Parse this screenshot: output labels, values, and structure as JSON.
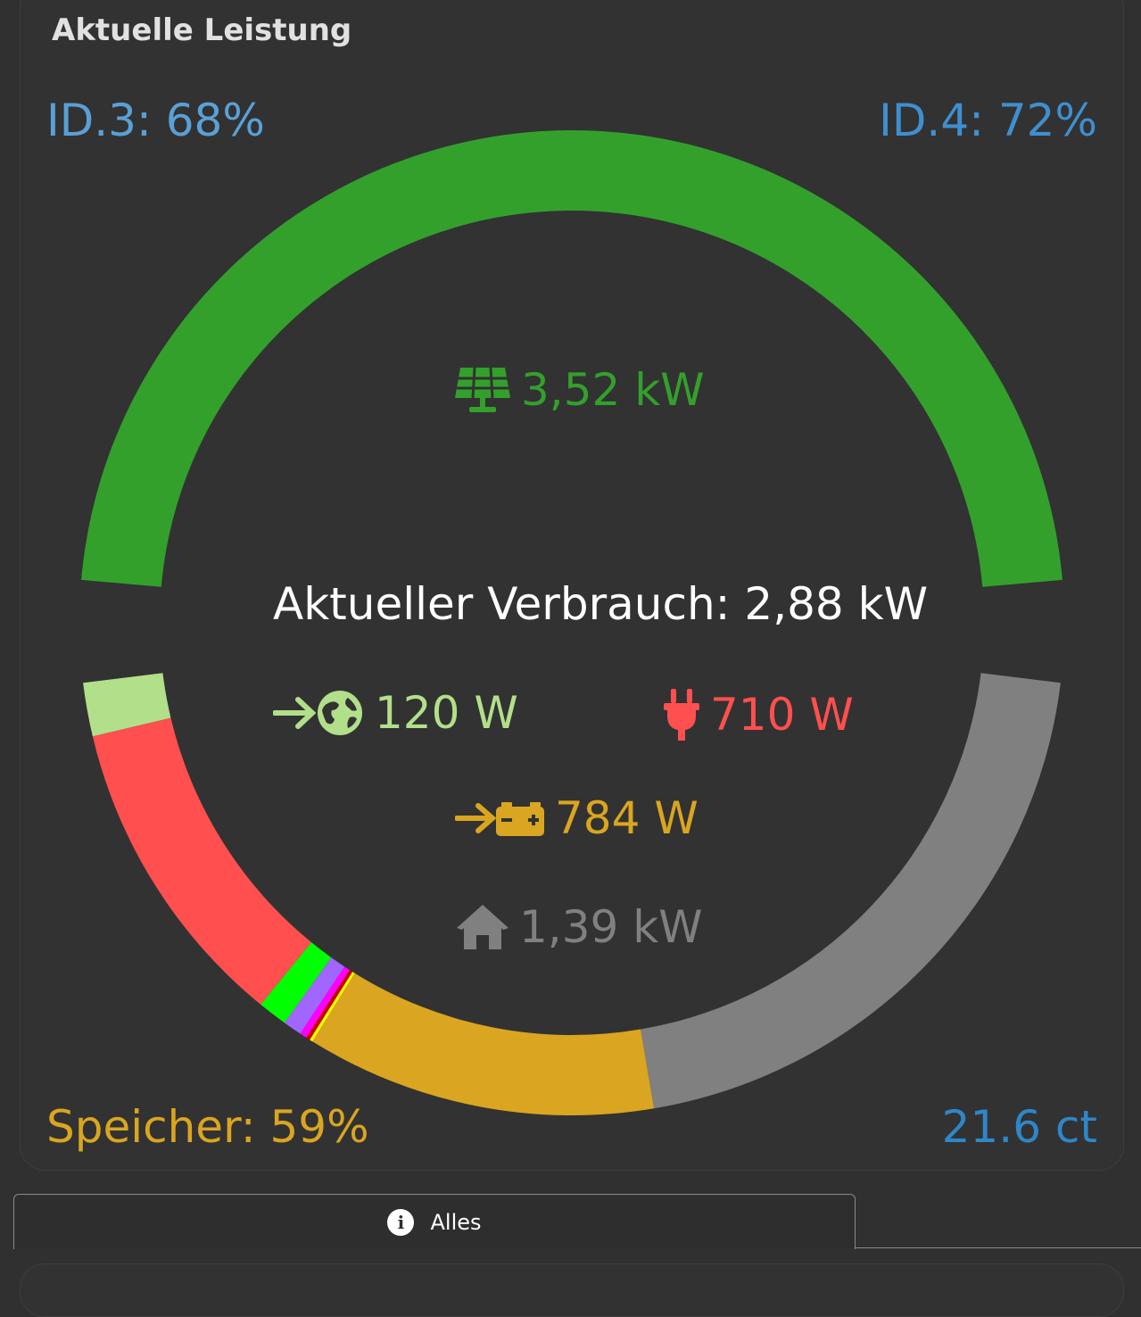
{
  "card": {
    "title": "Aktuelle Leistung",
    "top_left": {
      "text": "ID.3: 68%",
      "color": "#5aa0d6"
    },
    "top_right": {
      "text": "ID.4: 72%",
      "color": "#3f8fd0"
    },
    "bottom_left": {
      "text": "Speicher: 59%",
      "color": "#daa520"
    },
    "bottom_right": {
      "text": "21.6 ct",
      "color": "#2f86c8"
    }
  },
  "center": {
    "solar": {
      "icon": "solar-panel-icon",
      "value": "3,52 kW",
      "color": "#33a02c"
    },
    "consumption": {
      "label": "Aktueller Verbrauch: 2,88 kW",
      "color": "#ffffff"
    },
    "grid_import": {
      "icon": "grid-import-icon",
      "value": "120 W",
      "color": "#b2df8a"
    },
    "wallbox": {
      "icon": "plug-icon",
      "value": "710 W",
      "color": "#ff4f4f"
    },
    "battery_charge": {
      "icon": "battery-charge-icon",
      "value": "784 W",
      "color": "#daa520"
    },
    "house": {
      "icon": "home-icon",
      "value": "1,39 kW",
      "color": "#808080"
    }
  },
  "chart_data": {
    "type": "donut",
    "production_arc": [
      {
        "name": "PV",
        "value": 3.52,
        "color": "#33a02c"
      }
    ],
    "consumption_arc": [
      {
        "value": 0.12,
        "color": "#b2df8a"
      },
      {
        "value": 0.71,
        "color": "#ff4f4f"
      },
      {
        "value": 0.066,
        "color": "#00ff00"
      },
      {
        "value": 0.042,
        "color": "#a066ff"
      },
      {
        "value": 0.016,
        "color": "#ff00ff"
      },
      {
        "value": 0.009,
        "color": "#c80000"
      },
      {
        "value": 0.007,
        "color": "#ffff00"
      },
      {
        "value": 0.784,
        "color": "#daa520"
      },
      {
        "value": 1.39,
        "color": "#808080"
      }
    ]
  },
  "tabs": [
    {
      "label": "Alles",
      "icon": "info-icon"
    }
  ]
}
